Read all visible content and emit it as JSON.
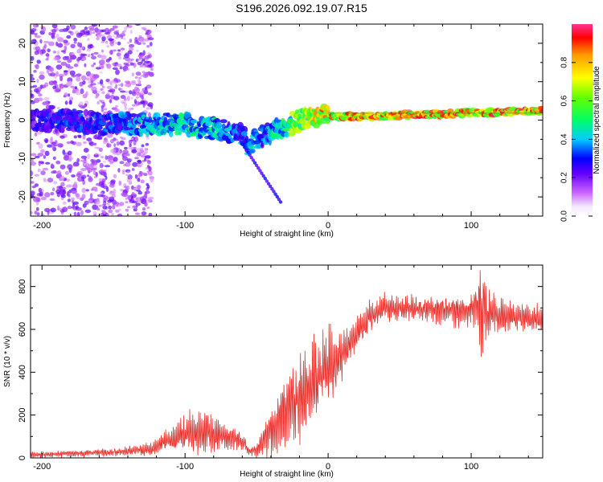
{
  "title": "S196.2026.092.19.07.R15",
  "chart_data": [
    {
      "type": "heatmap",
      "name": "spectrogram",
      "xlabel": "Height of straight line (km)",
      "ylabel": "Frequency (Hz)",
      "xlim": [
        -208,
        150
      ],
      "ylim": [
        -25,
        25
      ],
      "xticks": [
        -200,
        -100,
        0,
        100
      ],
      "yticks": [
        -20,
        -10,
        0,
        10,
        20
      ],
      "colorbar": {
        "label": "Normalized spectral amplitude",
        "ticks": [
          "0.0",
          "0.2",
          "0.4",
          "0.6",
          "0.8"
        ],
        "tick_values": [
          0.0,
          0.2,
          0.4,
          0.6,
          0.8
        ],
        "range": [
          0,
          1
        ]
      },
      "ridge": {
        "x": [
          -200,
          -180,
          -160,
          -140,
          -120,
          -100,
          -90,
          -80,
          -70,
          -60,
          -55,
          -50,
          -40,
          -30,
          -20,
          -10,
          -5,
          0,
          20,
          40,
          60,
          80,
          100,
          120,
          150
        ],
        "freq": [
          0,
          0,
          -1,
          -1,
          -1,
          -1,
          -2,
          -2,
          -3,
          -4,
          -7,
          -5,
          -3,
          -2,
          0,
          1,
          1,
          1,
          1,
          1,
          1.5,
          1.5,
          2,
          2,
          2.5
        ],
        "peak": [
          0.3,
          0.35,
          0.35,
          0.4,
          0.45,
          0.5,
          0.5,
          0.5,
          0.45,
          0.4,
          0.45,
          0.4,
          0.45,
          0.6,
          0.7,
          0.8,
          0.85,
          0.9,
          0.95,
          0.9,
          0.95,
          0.95,
          0.9,
          0.95,
          0.95
        ]
      }
    },
    {
      "type": "line",
      "name": "snr",
      "xlabel": "Height of straight line (km)",
      "ylabel": "SNR (10 * v/v)",
      "xlim": [
        -208,
        150
      ],
      "ylim": [
        0,
        900
      ],
      "xticks": [
        -200,
        -100,
        0,
        100
      ],
      "yticks": [
        0,
        200,
        400,
        600,
        800
      ],
      "color": "#e8302c",
      "envelope": {
        "x": [
          -208,
          -180,
          -160,
          -140,
          -125,
          -110,
          -100,
          -90,
          -80,
          -70,
          -60,
          -55,
          -50,
          -40,
          -30,
          -20,
          -10,
          0,
          10,
          20,
          30,
          40,
          60,
          80,
          100,
          105,
          108,
          112,
          120,
          150
        ],
        "mean": [
          15,
          20,
          25,
          30,
          40,
          90,
          110,
          120,
          110,
          100,
          80,
          30,
          40,
          120,
          220,
          300,
          360,
          420,
          480,
          580,
          660,
          700,
          700,
          690,
          690,
          700,
          690,
          670,
          660,
          650
        ],
        "amp": [
          12,
          15,
          15,
          20,
          30,
          50,
          80,
          100,
          80,
          60,
          40,
          20,
          40,
          120,
          150,
          180,
          180,
          150,
          120,
          80,
          70,
          60,
          60,
          60,
          70,
          150,
          200,
          120,
          70,
          60
        ]
      }
    }
  ]
}
